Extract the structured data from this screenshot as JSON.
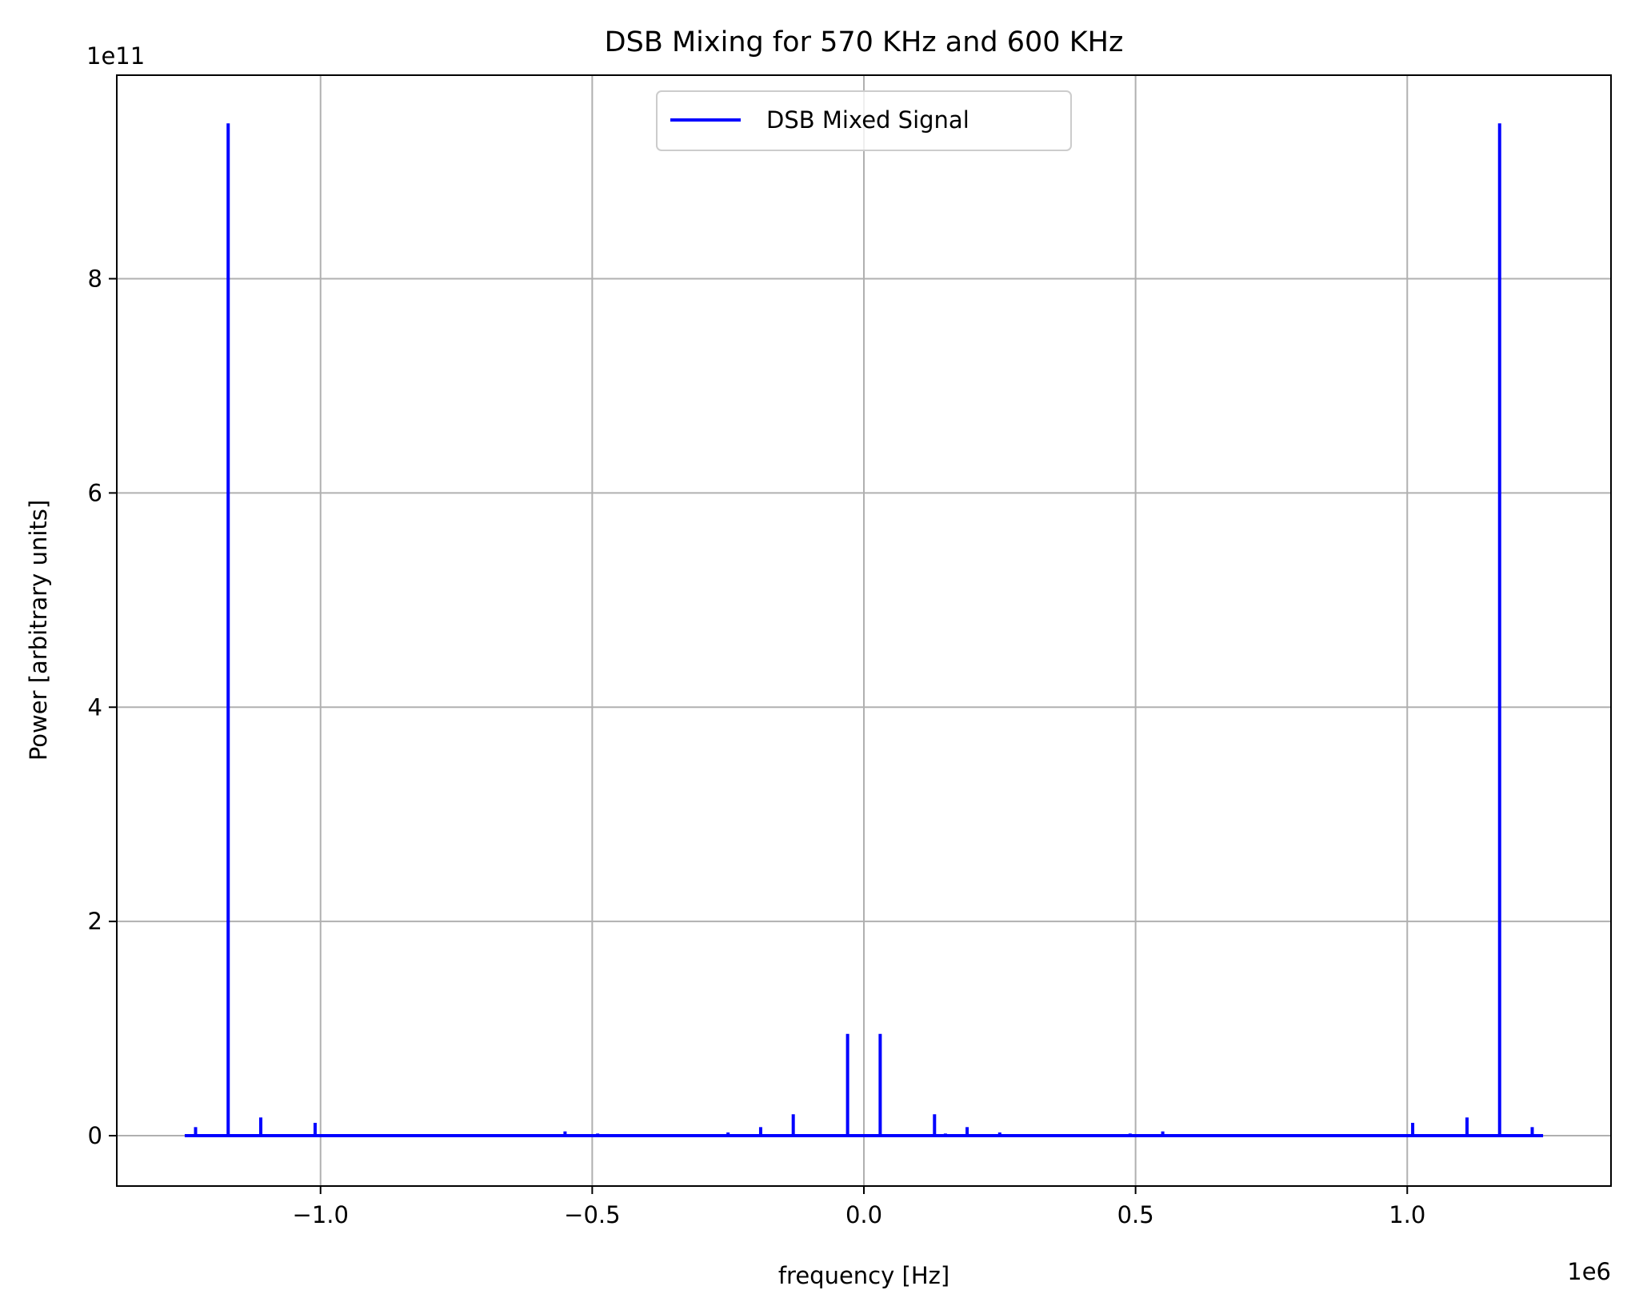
{
  "chart_data": {
    "type": "line",
    "title": "DSB Mixing for 570 KHz and 600 KHz",
    "xlabel": "frequency [Hz]",
    "ylabel": "Power [arbitrary units]",
    "x_offset_label": "1e6",
    "y_offset_label": "1e11",
    "xlim": [
      -1.375,
      1.375
    ],
    "ylim": [
      -0.47,
      9.9
    ],
    "x_ticks": [
      -1.0,
      -0.5,
      0.0,
      0.5,
      1.0
    ],
    "x_tick_labels": [
      "−1.0",
      "−0.5",
      "0.0",
      "0.5",
      "1.0"
    ],
    "y_ticks": [
      0,
      2,
      4,
      6,
      8
    ],
    "y_tick_labels": [
      "0",
      "2",
      "4",
      "6",
      "8"
    ],
    "grid": true,
    "legend": {
      "position": "upper center",
      "entries": [
        "DSB Mixed Signal"
      ]
    },
    "x_range": [
      -1.25,
      1.25
    ],
    "series": [
      {
        "name": "DSB Mixed Signal",
        "color": "#0000ff",
        "baseline": 0,
        "spikes": [
          [
            -1.23,
            0.08
          ],
          [
            -1.17,
            9.45
          ],
          [
            -1.11,
            0.17
          ],
          [
            -1.01,
            0.12
          ],
          [
            -0.55,
            0.04
          ],
          [
            -0.49,
            0.02
          ],
          [
            -0.25,
            0.03
          ],
          [
            -0.19,
            0.08
          ],
          [
            -0.13,
            0.2
          ],
          [
            -0.03,
            0.95
          ],
          [
            0.03,
            0.95
          ],
          [
            0.13,
            0.2
          ],
          [
            0.15,
            0.02
          ],
          [
            0.19,
            0.08
          ],
          [
            0.25,
            0.03
          ],
          [
            0.49,
            0.02
          ],
          [
            0.55,
            0.04
          ],
          [
            1.01,
            0.12
          ],
          [
            1.11,
            0.17
          ],
          [
            1.17,
            9.45
          ],
          [
            1.23,
            0.08
          ]
        ]
      }
    ]
  }
}
